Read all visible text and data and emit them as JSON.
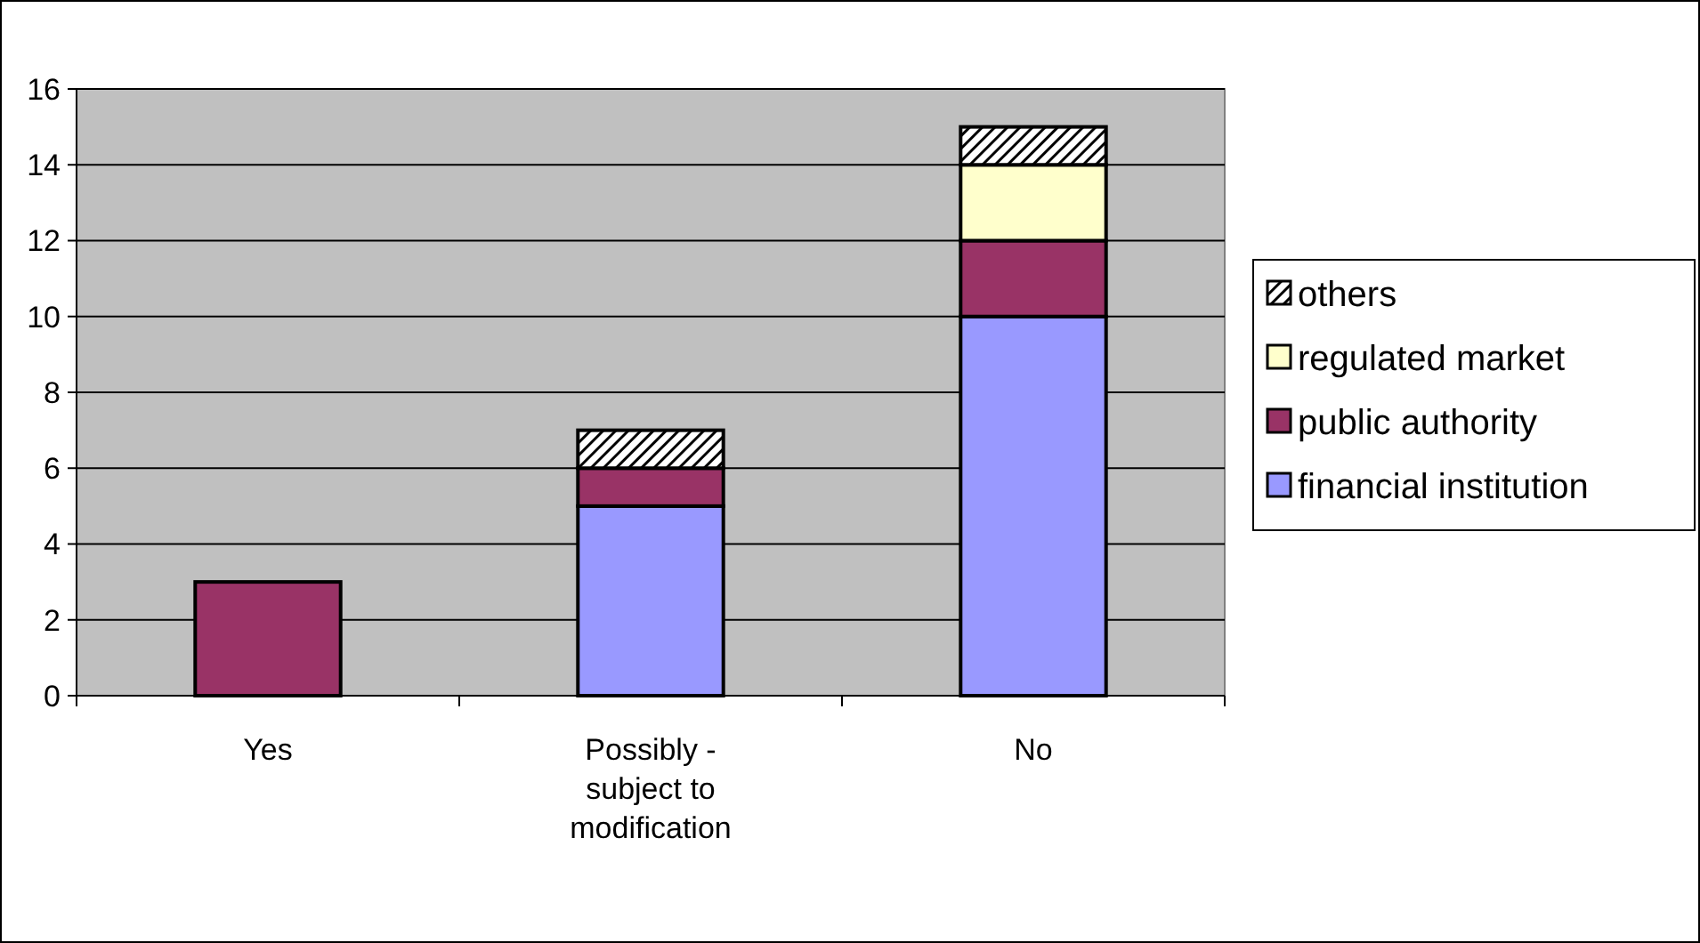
{
  "chart_data": {
    "type": "bar",
    "stacked": true,
    "categories": [
      "Yes",
      "Possibly - subject to modification",
      "No"
    ],
    "series": [
      {
        "name": "financial institution",
        "color": "#9999ff",
        "values": [
          null,
          5,
          10
        ]
      },
      {
        "name": "public authority",
        "color": "#993366",
        "values": [
          3,
          1,
          2
        ]
      },
      {
        "name": "regulated market",
        "color": "#ffffcc",
        "values": [
          null,
          null,
          2
        ]
      },
      {
        "name": "others",
        "color": "#000000",
        "values": [
          null,
          1,
          1
        ]
      }
    ],
    "ylim": [
      0,
      16
    ],
    "yticks": [
      0,
      2,
      4,
      6,
      8,
      10,
      12,
      14,
      16
    ],
    "grid": "y",
    "legend": "right"
  }
}
